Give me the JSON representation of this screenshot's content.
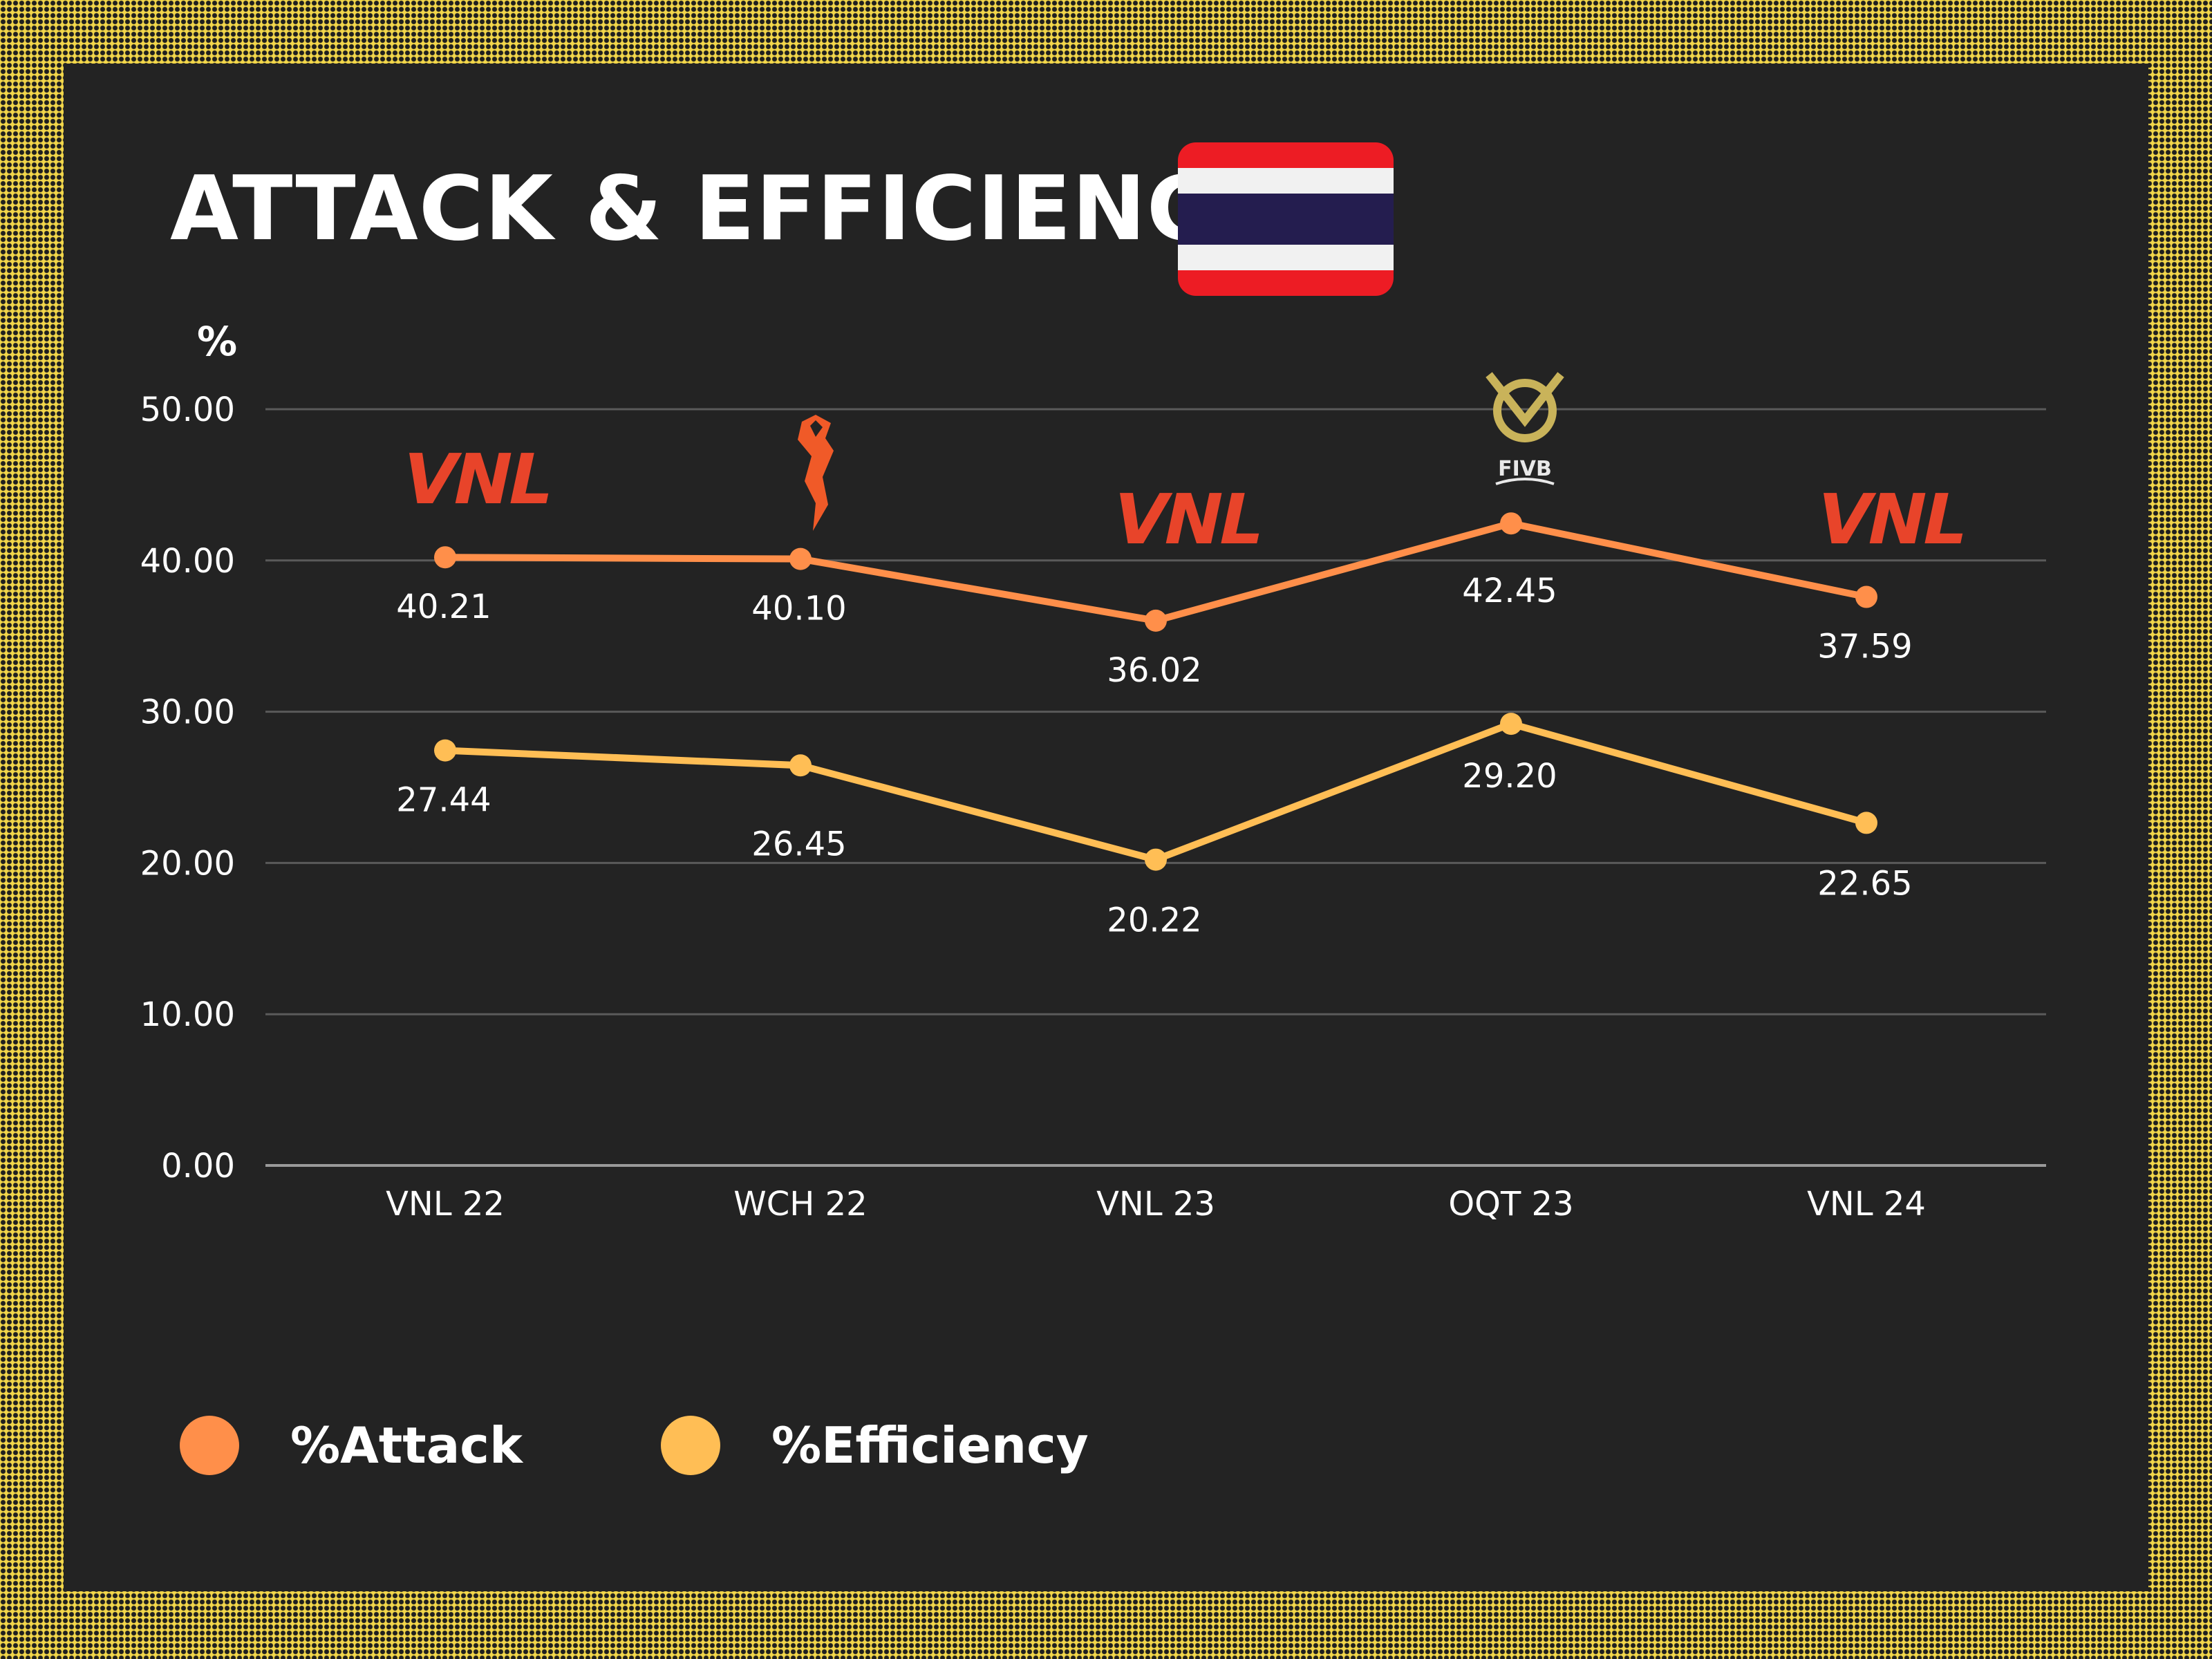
{
  "title": "ATTACK & EFFICIENCY",
  "flag_colors": {
    "red": "#ed1c24",
    "white": "#f1f1f1",
    "blue": "#241d4f"
  },
  "chart_data": {
    "type": "line",
    "ylabel": "%",
    "categories": [
      "VNL 22",
      "WCH 22",
      "VNL 23",
      "OQT 23",
      "VNL 24"
    ],
    "ylim": [
      0,
      50
    ],
    "yticks": [
      "0.00",
      "10.00",
      "20.00",
      "30.00",
      "40.00",
      "50.00"
    ],
    "grid": true,
    "legend_position": "bottom-left",
    "event_logos": [
      "vnl-logo",
      "world-championship-logo",
      "vnl-logo",
      "fivb-olympic-qualification-logo",
      "vnl-logo"
    ],
    "logo_texts": {
      "fivb": "FIVB",
      "vnl": "VNL"
    },
    "series": [
      {
        "name": "%Attack",
        "color": "#ff8f4a",
        "values": [
          40.21,
          40.1,
          36.02,
          42.45,
          37.59
        ],
        "labels": [
          "40.21",
          "40.10",
          "36.02",
          "42.45",
          "37.59"
        ]
      },
      {
        "name": "%Efficiency",
        "color": "#ffbe55",
        "values": [
          27.44,
          26.45,
          20.22,
          29.2,
          22.65
        ],
        "labels": [
          "27.44",
          "26.45",
          "20.22",
          "29.20",
          "22.65"
        ]
      }
    ]
  },
  "legend": [
    {
      "label": "%Attack",
      "color": "#ff8f4a"
    },
    {
      "label": "%Efficiency",
      "color": "#ffbe55"
    }
  ]
}
